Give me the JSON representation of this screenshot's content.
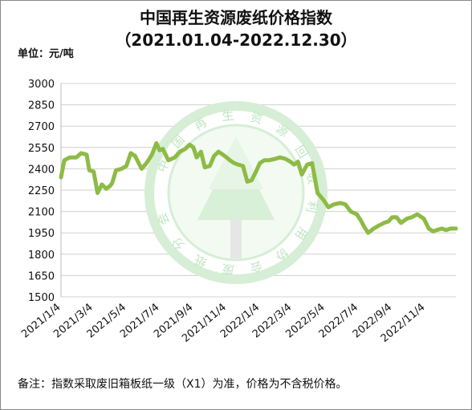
{
  "chart_data": {
    "type": "line",
    "title": "中国再生资源废纸价格指数",
    "subtitle": "（2021.01.04-2022.12.30）",
    "ylabel": "单位：元/吨",
    "xlabel": "",
    "ylim": [
      1500,
      3000
    ],
    "yticks": [
      3000,
      2850,
      2700,
      2550,
      2400,
      2250,
      2100,
      1950,
      1800,
      1650,
      1500
    ],
    "xticks": [
      "2021/1/4",
      "2021/3/4",
      "2021/5/4",
      "2021/7/4",
      "2021/9/4",
      "2021/11/4",
      "2022/1/4",
      "2022/3/4",
      "2022/5/4",
      "2022/7/4",
      "2022/9/4",
      "2022/11/4"
    ],
    "grid": true,
    "legend": "none",
    "color": "#8dbb45",
    "x": [
      "2021/1/4",
      "2021/1/10",
      "2021/1/20",
      "2021/2/1",
      "2021/2/10",
      "2021/2/20",
      "2021/2/25",
      "2021/3/5",
      "2021/3/12",
      "2021/3/20",
      "2021/3/28",
      "2021/4/4",
      "2021/4/8",
      "2021/4/15",
      "2021/4/25",
      "2021/5/4",
      "2021/5/12",
      "2021/5/20",
      "2021/6/1",
      "2021/6/10",
      "2021/6/20",
      "2021/6/28",
      "2021/7/4",
      "2021/7/10",
      "2021/7/20",
      "2021/8/1",
      "2021/8/10",
      "2021/8/20",
      "2021/8/28",
      "2021/9/4",
      "2021/9/10",
      "2021/9/18",
      "2021/9/25",
      "2021/10/4",
      "2021/10/12",
      "2021/10/20",
      "2021/10/28",
      "2021/11/4",
      "2021/11/10",
      "2021/11/18",
      "2021/11/25",
      "2021/12/4",
      "2021/12/12",
      "2021/12/20",
      "2021/12/28",
      "2022/1/4",
      "2022/1/12",
      "2022/1/20",
      "2022/2/1",
      "2022/2/10",
      "2022/2/20",
      "2022/3/1",
      "2022/3/8",
      "2022/3/15",
      "2022/3/22",
      "2022/4/1",
      "2022/4/10",
      "2022/4/20",
      "2022/5/1",
      "2022/5/10",
      "2022/5/20",
      "2022/6/1",
      "2022/6/10",
      "2022/6/20",
      "2022/7/1",
      "2022/7/8",
      "2022/7/15",
      "2022/7/22",
      "2022/8/1",
      "2022/8/10",
      "2022/8/20",
      "2022/8/28",
      "2022/9/4",
      "2022/9/12",
      "2022/9/20",
      "2022/10/1",
      "2022/10/10",
      "2022/10/20",
      "2022/11/1",
      "2022/11/10",
      "2022/11/18",
      "2022/11/25",
      "2022/12/4",
      "2022/12/12",
      "2022/12/20",
      "2022/12/30"
    ],
    "series": [
      {
        "values": [
          2340,
          2460,
          2480,
          2480,
          2510,
          2500,
          2390,
          2380,
          2230,
          2290,
          2260,
          2280,
          2300,
          2390,
          2400,
          2420,
          2510,
          2490,
          2400,
          2440,
          2500,
          2580,
          2530,
          2540,
          2460,
          2480,
          2520,
          2540,
          2570,
          2550,
          2480,
          2520,
          2410,
          2420,
          2490,
          2520,
          2500,
          2480,
          2460,
          2440,
          2430,
          2420,
          2310,
          2320,
          2380,
          2440,
          2460,
          2460,
          2470,
          2480,
          2470,
          2450,
          2430,
          2450,
          2360,
          2430,
          2440,
          2230,
          2180,
          2130,
          2150,
          2160,
          2150,
          2100,
          2080,
          2040,
          1990,
          1950,
          1980,
          2000,
          2020,
          2030,
          2060,
          2060,
          2020,
          2050,
          2060,
          2080,
          2050,
          1980,
          1960,
          1970,
          1980,
          1970,
          1980,
          1980
        ]
      }
    ]
  },
  "unit_label": "单位：元/吨",
  "watermark": {
    "text": "中国再生资源回收利用协会废纸分会",
    "color": "#d6eed6"
  },
  "footnote": "备注：指数采取废旧箱板纸一级（X1）为准，价格为不含税价格。"
}
